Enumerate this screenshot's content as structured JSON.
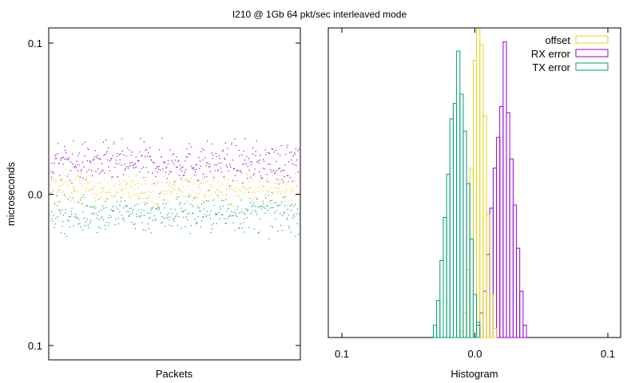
{
  "page_title": "I210 @ 1Gb 64 pkt/sec interleaved mode",
  "colors": {
    "offset": "#e6d31b",
    "rx_error": "#9400d3",
    "tx_error": "#009e73",
    "axis": "#000000"
  },
  "chart_data": [
    {
      "type": "scatter",
      "xlabel": "Packets",
      "ylabel": "microseconds",
      "ylim": [
        -0.1,
        0.1
      ],
      "yticks": [
        {
          "value": 0.1,
          "label": "0.1"
        },
        {
          "value": 0.0,
          "label": "0.0"
        },
        {
          "value": -0.1,
          "label": "0.1"
        }
      ],
      "x_tick_labels": false,
      "points_per_series": 400,
      "series": [
        {
          "name": "offset",
          "color": "#e6d31b",
          "mean": 0.004,
          "spread": 0.0055
        },
        {
          "name": "RX error",
          "color": "#9400d3",
          "mean": 0.021,
          "spread": 0.0065
        },
        {
          "name": "TX error",
          "color": "#009e73",
          "mean": -0.012,
          "spread": 0.0065
        }
      ]
    },
    {
      "type": "histogram",
      "xlabel": "Histogram",
      "xlim": [
        -0.1,
        0.1
      ],
      "xticks": [
        {
          "value": -0.1,
          "label": "0.1"
        },
        {
          "value": 0.0,
          "label": "0.0"
        },
        {
          "value": 0.1,
          "label": "0.1"
        }
      ],
      "bin_width": 0.0025,
      "legend": {
        "position": "top-right"
      },
      "series": [
        {
          "name": "offset",
          "color": "#e6d31b",
          "bins": [
            [
              -0.01,
              0.02
            ],
            [
              -0.0075,
              0.08
            ],
            [
              -0.005,
              0.22
            ],
            [
              -0.0025,
              0.55
            ],
            [
              0.0,
              0.9
            ],
            [
              0.0025,
              1.0
            ],
            [
              0.005,
              0.95
            ],
            [
              0.0075,
              0.72
            ],
            [
              0.01,
              0.4
            ],
            [
              0.0125,
              0.14
            ],
            [
              0.015,
              0.03
            ]
          ]
        },
        {
          "name": "RX error",
          "color": "#9400d3",
          "bins": [
            [
              0.0025,
              0.04
            ],
            [
              0.005,
              0.08
            ],
            [
              0.0075,
              0.15
            ],
            [
              0.01,
              0.27
            ],
            [
              0.0125,
              0.42
            ],
            [
              0.015,
              0.55
            ],
            [
              0.0175,
              0.65
            ],
            [
              0.02,
              0.75
            ],
            [
              0.0225,
              0.96
            ],
            [
              0.025,
              0.73
            ],
            [
              0.0275,
              0.58
            ],
            [
              0.03,
              0.43
            ],
            [
              0.0325,
              0.29
            ],
            [
              0.035,
              0.15
            ],
            [
              0.0375,
              0.04
            ]
          ]
        },
        {
          "name": "TX error",
          "color": "#009e73",
          "bins": [
            [
              -0.03,
              0.04
            ],
            [
              -0.0275,
              0.12
            ],
            [
              -0.025,
              0.25
            ],
            [
              -0.0225,
              0.39
            ],
            [
              -0.02,
              0.53
            ],
            [
              -0.0175,
              0.71
            ],
            [
              -0.015,
              0.76
            ],
            [
              -0.0125,
              0.93
            ],
            [
              -0.01,
              0.79
            ],
            [
              -0.0075,
              0.67
            ],
            [
              -0.005,
              0.5
            ],
            [
              -0.0025,
              0.32
            ],
            [
              0.0,
              0.14
            ],
            [
              0.0025,
              0.05
            ]
          ]
        }
      ]
    }
  ]
}
